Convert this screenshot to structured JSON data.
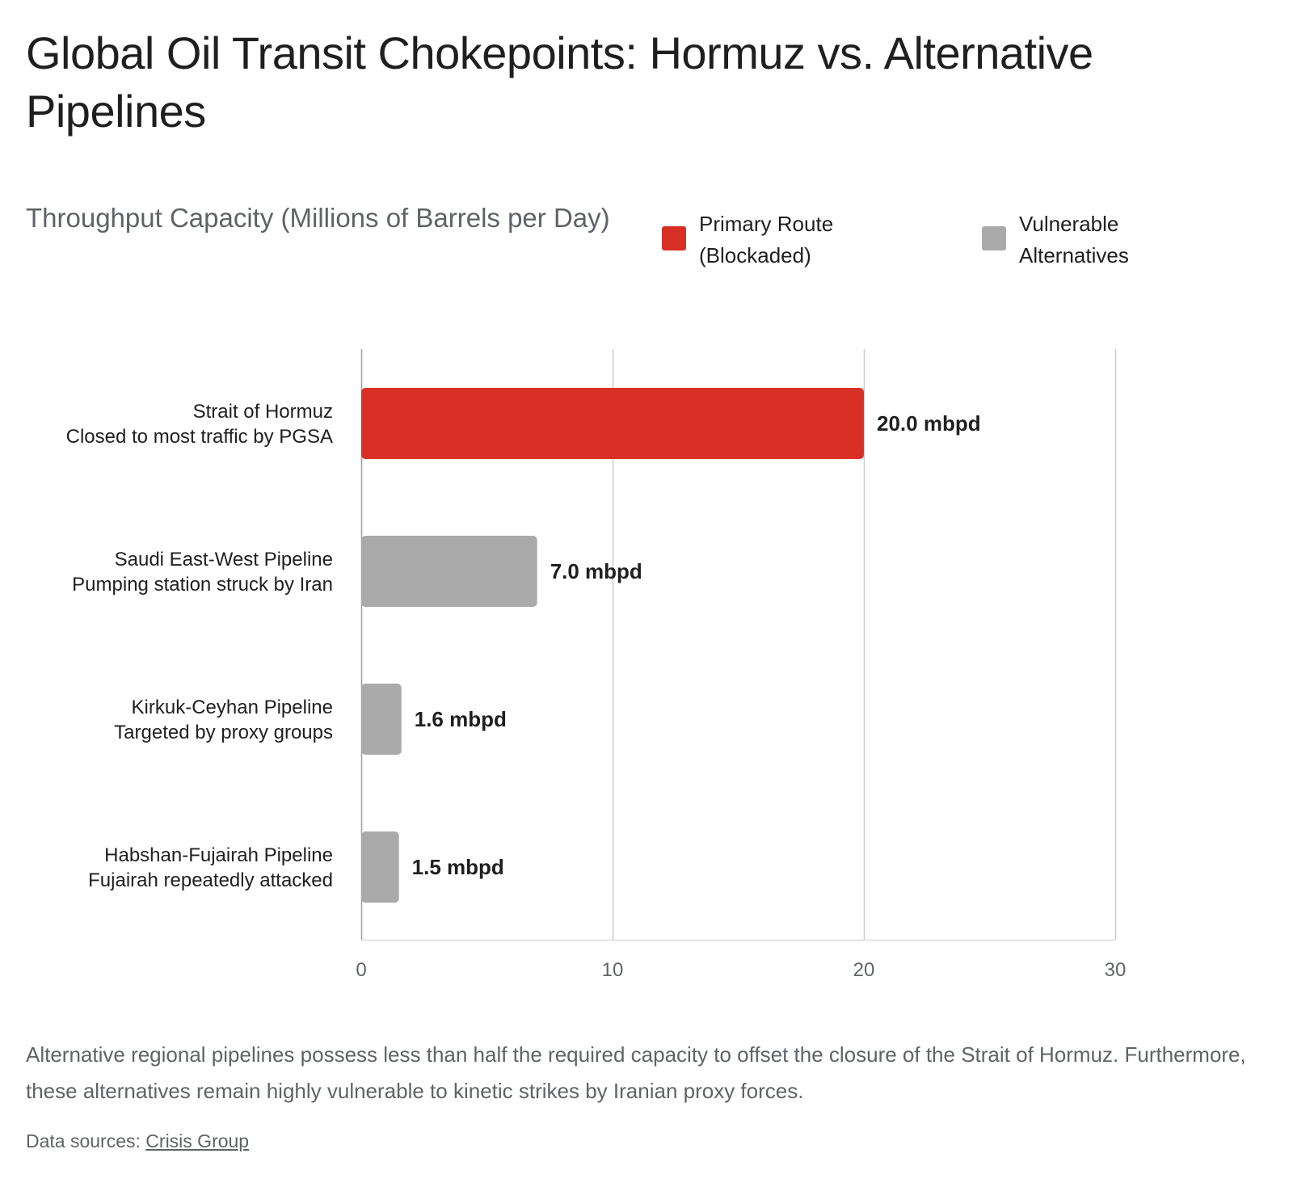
{
  "page": {
    "title": "Global Oil Transit Chokepoints: Hormuz vs. Alternative Pipelines",
    "subtitle": "Throughput Capacity (Millions of Barrels per Day)",
    "footnote": "Alternative regional pipelines possess less than half the required capacity to offset the closure of the Strait of Hormuz. Furthermore, these alternatives remain highly vulnerable to kinetic strikes by Iranian proxy forces.",
    "sources_label": "Data sources:",
    "sources_link": "Crisis Group"
  },
  "legend": [
    {
      "label": "Primary Route\n(Blockaded)",
      "color": "#d93025"
    },
    {
      "label": "Vulnerable\nAlternatives",
      "color": "#aaaaaa"
    }
  ],
  "chart_data": {
    "type": "bar",
    "orientation": "horizontal",
    "title": "Global Oil Transit Chokepoints: Hormuz vs. Alternative Pipelines",
    "subtitle": "Throughput Capacity (Millions of Barrels per Day)",
    "xlim": [
      0,
      30
    ],
    "xticks": [
      0,
      10,
      20,
      30
    ],
    "grid": true,
    "legend_position": "top-right",
    "categories": [
      {
        "name": "Strait of Hormuz",
        "note": "Closed to most traffic by PGSA"
      },
      {
        "name": "Saudi East-West Pipeline",
        "note": "Pumping station struck by Iran"
      },
      {
        "name": "Kirkuk-Ceyhan Pipeline",
        "note": "Targeted by proxy groups"
      },
      {
        "name": "Habshan-Fujairah Pipeline",
        "note": "Fujairah repeatedly attacked"
      }
    ],
    "values": [
      20.0,
      7.0,
      1.6,
      1.5
    ],
    "value_labels": [
      "20.0 mbpd",
      "7.0 mbpd",
      "1.6 mbpd",
      "1.5 mbpd"
    ],
    "groups": [
      "Primary Route (Blockaded)",
      "Vulnerable Alternatives",
      "Vulnerable Alternatives",
      "Vulnerable Alternatives"
    ],
    "colors": [
      "#d93025",
      "#aaaaaa",
      "#aaaaaa",
      "#aaaaaa"
    ]
  }
}
